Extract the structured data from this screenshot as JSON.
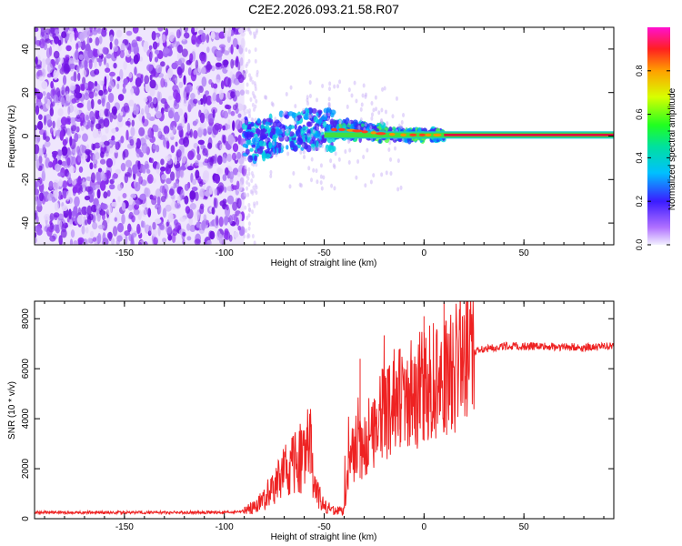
{
  "title": "C2E2.2026.093.21.58.R07",
  "colors": {
    "snr_line": "#ee2222",
    "spectro_purple": "#7a1fe8",
    "spectro_track": "#e01040"
  },
  "chart_data": [
    {
      "type": "heatmap",
      "name": "spectrogram",
      "xlabel": "Height of straight line (km)",
      "ylabel": "Frequency (Hz)",
      "xlim": [
        -195,
        95
      ],
      "ylim": [
        -50,
        50
      ],
      "xticks": [
        -150,
        -100,
        -50,
        0,
        50
      ],
      "yticks": [
        -40,
        -20,
        0,
        20,
        40
      ],
      "noise_region_x": [
        -195,
        -90
      ],
      "signal_track": [
        {
          "x": -88,
          "y": -3
        },
        {
          "x": -80,
          "y": -1
        },
        {
          "x": -70,
          "y": 2
        },
        {
          "x": -60,
          "y": 3
        },
        {
          "x": -50,
          "y": 3
        },
        {
          "x": -40,
          "y": 3
        },
        {
          "x": -30,
          "y": 2
        },
        {
          "x": -20,
          "y": 1
        },
        {
          "x": -10,
          "y": 0.5
        },
        {
          "x": 0,
          "y": 0.5
        },
        {
          "x": 10,
          "y": 0.5
        },
        {
          "x": 95,
          "y": 0.5
        }
      ],
      "colorbar": {
        "label": "Normalized spectral amplitude",
        "ticks": [
          0.0,
          0.2,
          0.4,
          0.6,
          0.8
        ],
        "tick_labels": [
          "0.0",
          "0.2",
          "0.4",
          "0.6",
          "0.8"
        ],
        "range": [
          0,
          1
        ]
      }
    },
    {
      "type": "line",
      "name": "snr",
      "xlabel": "Height of straight line (km)",
      "ylabel": "SNR (10 * v/v)",
      "xlim": [
        -195,
        95
      ],
      "ylim": [
        0,
        8700
      ],
      "xticks": [
        -150,
        -100,
        -50,
        0,
        50
      ],
      "yticks": [
        0,
        2000,
        4000,
        6000,
        8000
      ],
      "series": [
        {
          "name": "SNR",
          "x": [
            -195,
            -180,
            -160,
            -140,
            -120,
            -100,
            -90,
            -85,
            -80,
            -75,
            -70,
            -65,
            -60,
            -57,
            -55,
            -52,
            -50,
            -45,
            -40,
            -37,
            -35,
            -30,
            -27,
            -25,
            -20,
            -15,
            -10,
            -5,
            0,
            5,
            10,
            15,
            20,
            25,
            30,
            40,
            60,
            80,
            95
          ],
          "y": [
            250,
            250,
            250,
            250,
            250,
            250,
            300,
            450,
            800,
            1300,
            1800,
            2200,
            2500,
            3000,
            1200,
            800,
            500,
            350,
            300,
            2500,
            2600,
            2800,
            3200,
            3600,
            4200,
            4600,
            4900,
            5000,
            5200,
            5500,
            5800,
            6000,
            6100,
            6600,
            6800,
            6900,
            6900,
            6850,
            6900
          ]
        }
      ],
      "spikes": [
        {
          "x": -57,
          "y": 3900
        },
        {
          "x": -32,
          "y": 6400
        },
        {
          "x": -21,
          "y": 6000
        },
        {
          "x": -12,
          "y": 6800
        },
        {
          "x": 0,
          "y": 8100
        },
        {
          "x": 10,
          "y": 8650
        }
      ]
    }
  ]
}
